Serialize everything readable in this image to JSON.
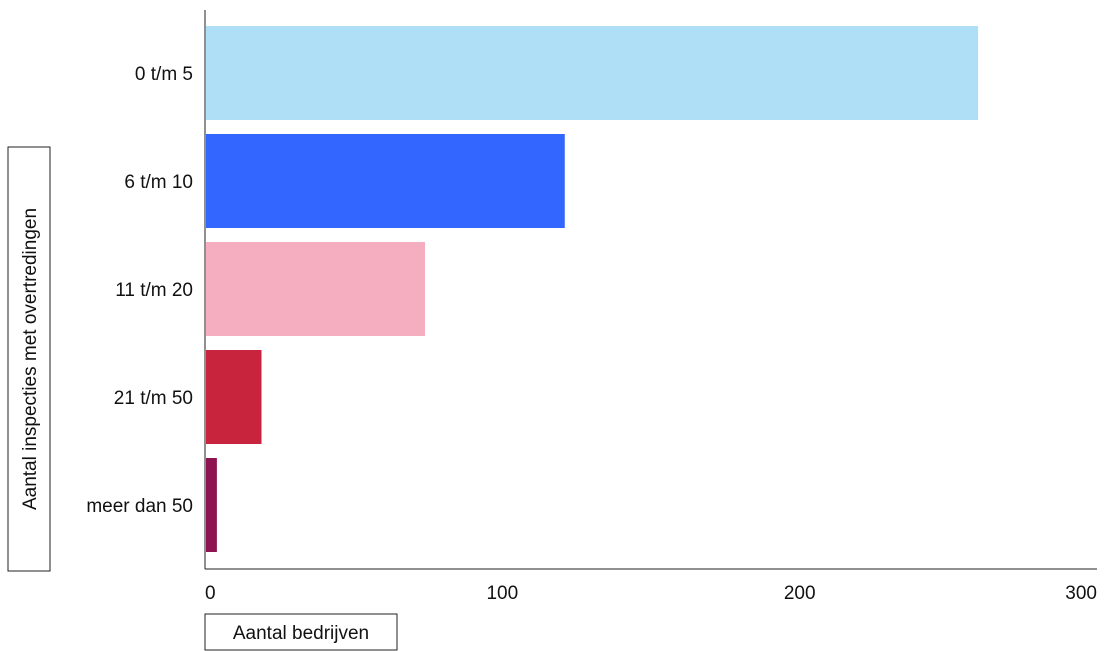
{
  "chart_data": {
    "type": "bar",
    "orientation": "horizontal",
    "title": "",
    "categories": [
      "0 t/m 5",
      "6 t/m 10",
      "11 t/m 20",
      "21 t/m 50",
      "meer dan 50"
    ],
    "values": [
      260,
      121,
      74,
      19,
      4
    ],
    "colors": [
      "#aedff7",
      "#3366ff",
      "#f4aec0",
      "#c8243d",
      "#8e1351"
    ],
    "xlabel": "Aantal bedrijven",
    "ylabel": "Aantal inspecties met overtredingen",
    "xlim": [
      0,
      300
    ],
    "xticks": [
      0,
      100,
      200,
      300
    ],
    "grid": false,
    "legend": "none"
  }
}
